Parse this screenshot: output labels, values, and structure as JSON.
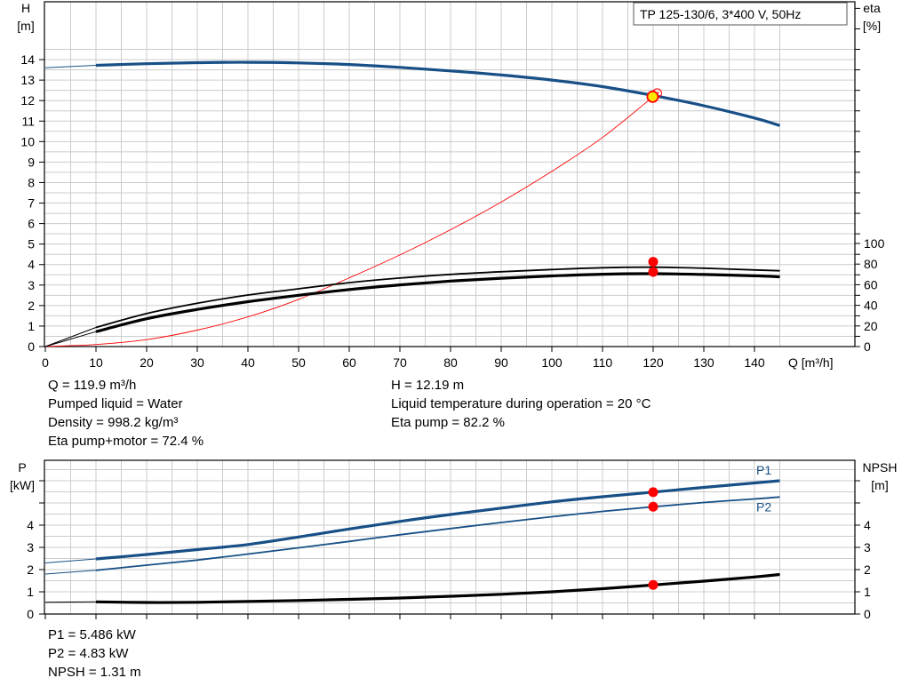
{
  "colors": {
    "blue": "#174f86",
    "red": "#ff0000",
    "black": "#000000",
    "grid": "#cccccc",
    "op_point_fill": "#ffe800"
  },
  "chart_data": [
    {
      "type": "line",
      "title": "TP 125-130/6, 3*400 V, 50Hz",
      "xlabel": "Q [m³/h]",
      "ylabel": [
        "H",
        "[m]"
      ],
      "ylabel_right": [
        "eta",
        "[%]"
      ],
      "xlim": [
        0,
        150
      ],
      "ylim": [
        0,
        15
      ],
      "ylim_right": [
        0,
        100
      ],
      "x_ticks": [
        0,
        10,
        20,
        30,
        40,
        50,
        60,
        70,
        80,
        90,
        100,
        110,
        120,
        130,
        140
      ],
      "y_ticks": [
        0,
        1,
        2,
        3,
        4,
        5,
        6,
        7,
        8,
        9,
        10,
        11,
        12,
        13,
        14
      ],
      "y_ticks_right": [
        0,
        20,
        40,
        60,
        80,
        100
      ],
      "grid": true,
      "series": [
        {
          "axis": "left",
          "color": "#174f86",
          "style": "thick",
          "x": [
            0,
            10,
            20,
            30,
            40,
            50,
            60,
            70,
            80,
            90,
            100,
            110,
            120,
            130,
            140,
            145
          ],
          "y": [
            13.6,
            13.72,
            13.8,
            13.85,
            13.87,
            13.84,
            13.76,
            13.62,
            13.45,
            13.25,
            13.0,
            12.68,
            12.25,
            11.75,
            11.15,
            10.78
          ]
        },
        {
          "axis": "left",
          "color": "#ff0000",
          "style": "thin",
          "x": [
            0,
            10,
            20,
            30,
            40,
            50,
            60,
            70,
            80,
            90,
            100,
            110,
            120,
            121
          ],
          "y": [
            0,
            0.1,
            0.34,
            0.8,
            1.45,
            2.3,
            3.35,
            4.47,
            5.7,
            7.05,
            8.55,
            10.2,
            12.19,
            12.4
          ]
        },
        {
          "axis": "right",
          "color": "#000000",
          "style": "medium",
          "x": [
            0,
            10,
            20,
            30,
            40,
            50,
            60,
            70,
            80,
            90,
            100,
            110,
            120,
            130,
            140,
            145
          ],
          "y": [
            0,
            18.5,
            32,
            42,
            50,
            56,
            62,
            66.5,
            70,
            72.6,
            74.7,
            76.5,
            77,
            76,
            74.3,
            73.5
          ]
        },
        {
          "axis": "right",
          "color": "#000000",
          "style": "thick",
          "x": [
            0,
            10,
            20,
            30,
            40,
            50,
            60,
            70,
            80,
            90,
            100,
            110,
            120,
            130,
            140,
            145
          ],
          "y": [
            0,
            14.5,
            27,
            36,
            43.5,
            49.7,
            55.3,
            59.8,
            63.5,
            66.3,
            68.5,
            70.2,
            70.7,
            69.9,
            68.6,
            67.7
          ]
        }
      ],
      "markers": [
        {
          "axis": "left",
          "x": 119.9,
          "y": 12.19,
          "kind": "operating-point"
        },
        {
          "axis": "right",
          "x": 120,
          "y": 82.2
        },
        {
          "axis": "right",
          "x": 120,
          "y": 72.4
        }
      ]
    },
    {
      "type": "line",
      "ylabel": [
        "P",
        "[kW]"
      ],
      "ylabel_right": [
        "NPSH",
        "[m]"
      ],
      "xlim": [
        0,
        150
      ],
      "ylim": [
        0,
        6
      ],
      "y_ticks": [
        0,
        1,
        2,
        3,
        4
      ],
      "y_ticks_right": [
        0,
        1,
        2,
        3,
        4
      ],
      "grid": true,
      "series": [
        {
          "name": "P1",
          "color": "#174f86",
          "style": "thick",
          "x": [
            0,
            10,
            20,
            30,
            40,
            50,
            60,
            70,
            80,
            90,
            100,
            110,
            120,
            130,
            140,
            145
          ],
          "y": [
            2.3,
            2.48,
            2.68,
            2.9,
            3.13,
            3.47,
            3.83,
            4.17,
            4.48,
            4.77,
            5.05,
            5.28,
            5.49,
            5.7,
            5.9,
            6.0
          ]
        },
        {
          "name": "P2",
          "color": "#174f86",
          "style": "medium",
          "x": [
            0,
            10,
            20,
            30,
            40,
            50,
            60,
            70,
            80,
            90,
            100,
            110,
            120,
            130,
            140,
            145
          ],
          "y": [
            1.8,
            1.97,
            2.2,
            2.43,
            2.7,
            2.98,
            3.27,
            3.57,
            3.85,
            4.12,
            4.38,
            4.62,
            4.83,
            5.02,
            5.18,
            5.27
          ]
        },
        {
          "name": "NPSH",
          "color": "#000000",
          "style": "thick",
          "x": [
            0,
            10,
            20,
            30,
            40,
            50,
            60,
            70,
            80,
            90,
            100,
            110,
            120,
            130,
            140,
            145
          ],
          "y": [
            0.53,
            0.55,
            0.52,
            0.53,
            0.57,
            0.61,
            0.66,
            0.72,
            0.8,
            0.89,
            1.0,
            1.14,
            1.31,
            1.48,
            1.67,
            1.78
          ]
        }
      ],
      "markers": [
        {
          "x": 120,
          "y": 5.486
        },
        {
          "x": 120,
          "y": 4.83
        },
        {
          "x": 120,
          "y": 1.31
        }
      ]
    }
  ],
  "info_top_left": [
    "Q = 119.9 m³/h",
    "Pumped liquid = Water",
    "Density = 998.2 kg/m³",
    "Eta pump+motor = 72.4 %"
  ],
  "info_top_right": [
    "H = 12.19 m",
    "Liquid temperature during operation = 20 °C",
    "Eta pump = 82.2 %"
  ],
  "info_bottom": [
    "P1 = 5.486 kW",
    "P2 = 4.83 kW",
    "NPSH = 1.31 m"
  ]
}
